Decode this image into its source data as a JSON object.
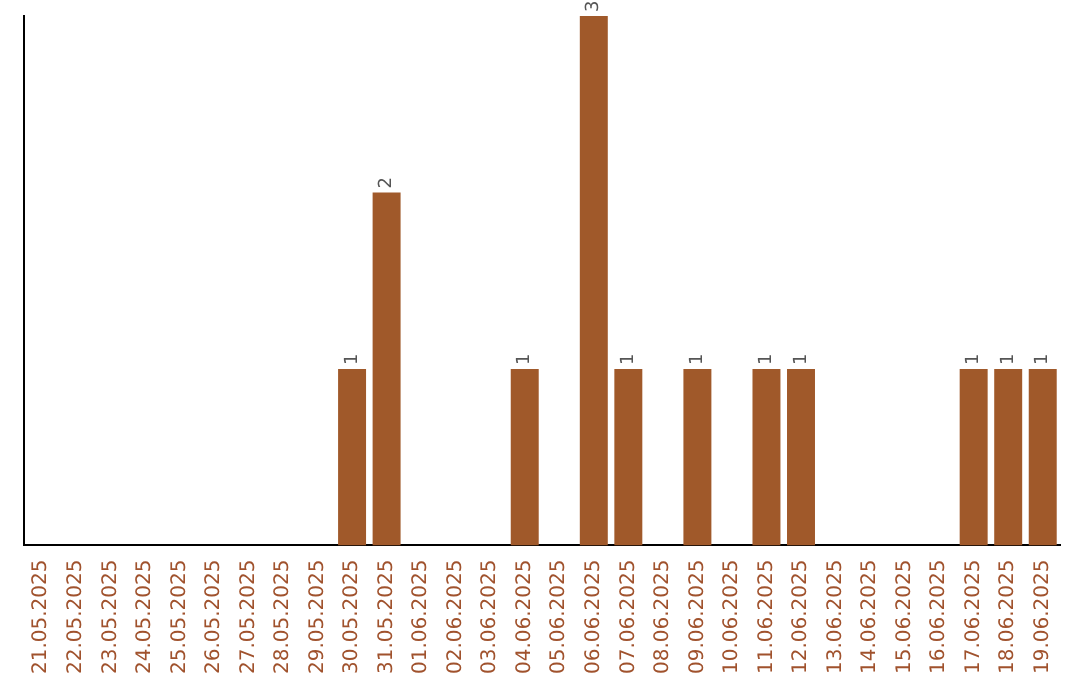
{
  "chart_data": {
    "type": "bar",
    "categories": [
      "21.05.2025",
      "22.05.2025",
      "23.05.2025",
      "24.05.2025",
      "25.05.2025",
      "26.05.2025",
      "27.05.2025",
      "28.05.2025",
      "29.05.2025",
      "30.05.2025",
      "31.05.2025",
      "01.06.2025",
      "02.06.2025",
      "03.06.2025",
      "04.06.2025",
      "05.06.2025",
      "06.06.2025",
      "07.06.2025",
      "08.06.2025",
      "09.06.2025",
      "10.06.2025",
      "11.06.2025",
      "12.06.2025",
      "13.06.2025",
      "14.06.2025",
      "15.06.2025",
      "16.06.2025",
      "17.06.2025",
      "18.06.2025",
      "19.06.2025"
    ],
    "values": [
      0,
      0,
      0,
      0,
      0,
      0,
      0,
      0,
      0,
      1,
      2,
      0,
      0,
      0,
      1,
      0,
      3,
      1,
      0,
      1,
      0,
      1,
      1,
      0,
      0,
      0,
      0,
      1,
      1,
      1
    ],
    "value_labels": [
      null,
      null,
      null,
      null,
      null,
      null,
      null,
      null,
      null,
      "1",
      "2",
      null,
      null,
      null,
      "1",
      null,
      "3",
      "1",
      null,
      "1",
      null,
      "1",
      "1",
      null,
      null,
      null,
      null,
      "1",
      "1",
      "1"
    ],
    "color": "#a0592a",
    "tick_labels": "x"
  }
}
